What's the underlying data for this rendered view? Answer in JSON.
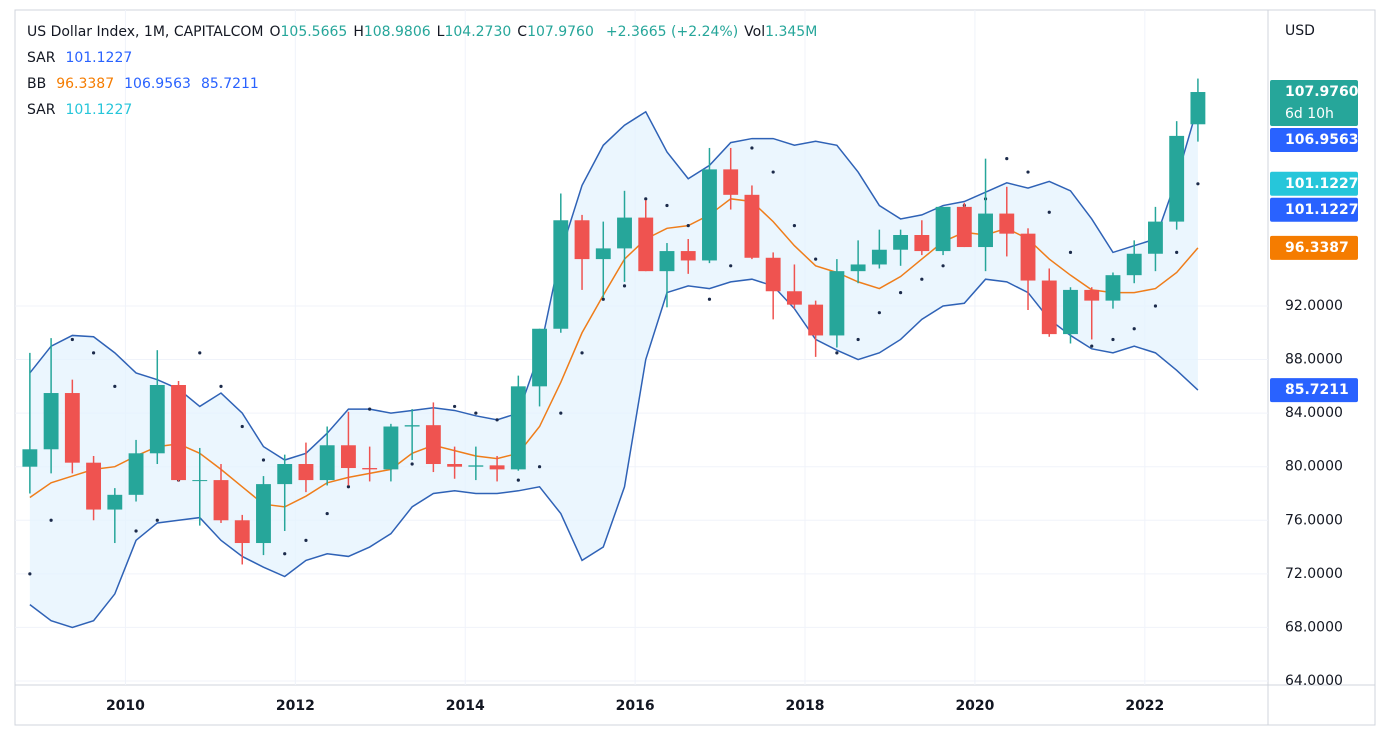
{
  "header": {
    "symbol": "US Dollar Index, 1M, CAPITALCOM",
    "fields": [
      {
        "key": "O",
        "value": "105.5665"
      },
      {
        "key": "H",
        "value": "108.9806"
      },
      {
        "key": "L",
        "value": "104.2730"
      },
      {
        "key": "C",
        "value": "107.9760"
      }
    ],
    "change": "+2.3665 (+2.24%)",
    "vol_key": "Vol",
    "vol": "1.345M",
    "indicators": [
      {
        "name": "SAR",
        "values": [
          "101.1227"
        ]
      },
      {
        "name": "BB",
        "values": [
          "96.3387",
          "106.9563",
          "85.7211"
        ]
      },
      {
        "name": "SAR",
        "values": [
          "101.1227"
        ]
      }
    ]
  },
  "chart_data": {
    "type": "candlestick",
    "currency": "USD",
    "x": [
      2008.75,
      2009,
      2009.25,
      2009.5,
      2009.75,
      2010,
      2010.25,
      2010.5,
      2010.75,
      2011,
      2011.25,
      2011.5,
      2011.75,
      2012,
      2012.25,
      2012.5,
      2012.75,
      2013,
      2013.25,
      2013.5,
      2013.75,
      2014,
      2014.25,
      2014.5,
      2014.75,
      2015,
      2015.25,
      2015.5,
      2015.75,
      2016,
      2016.25,
      2016.5,
      2016.75,
      2017,
      2017.25,
      2017.5,
      2017.75,
      2018,
      2018.25,
      2018.5,
      2018.75,
      2019,
      2019.25,
      2019.5,
      2019.75,
      2020,
      2020.25,
      2020.5,
      2020.75,
      2021,
      2021.25,
      2021.5,
      2021.75,
      2022,
      2022.25,
      2022.5
    ],
    "open": [
      80,
      81.3,
      85.5,
      80.3,
      76.8,
      77.9,
      81,
      86.1,
      79,
      79,
      76,
      74.3,
      78.7,
      80.2,
      79,
      81.6,
      79.9,
      79.8,
      83,
      83.1,
      80.2,
      80,
      80.1,
      79.8,
      86,
      90.3,
      98.4,
      95.5,
      96.3,
      98.6,
      94.6,
      96.1,
      95.4,
      102.2,
      100.3,
      95.6,
      93.1,
      92.1,
      89.8,
      94.6,
      95.1,
      96.2,
      97.3,
      96.1,
      99.4,
      96.4,
      98.9,
      97.4,
      93.9,
      89.9,
      93.2,
      92.4,
      94.3,
      95.9,
      98.3,
      105.5665
    ],
    "high": [
      88.5,
      89.6,
      86.5,
      80.8,
      78.4,
      82,
      88.7,
      86.4,
      81.4,
      80.2,
      76.4,
      79.3,
      80.9,
      81.8,
      83,
      84.1,
      81.5,
      83.2,
      84.3,
      84.8,
      81.5,
      81.5,
      80.8,
      86.8,
      90.3,
      100.4,
      98.8,
      98.3,
      100.6,
      99.9,
      96.7,
      97,
      103.8,
      103.8,
      101,
      96,
      95.1,
      92.4,
      95.5,
      96.9,
      97.7,
      97.7,
      98.4,
      99.4,
      99.7,
      103,
      100.9,
      97.8,
      94.8,
      93.4,
      93.4,
      94.5,
      96.9,
      99.4,
      105.8,
      108.9806
    ],
    "low": [
      78,
      79.5,
      79.5,
      76,
      74.3,
      77.4,
      80.2,
      78.9,
      75.6,
      75.8,
      72.7,
      73.4,
      75.2,
      78.1,
      78.6,
      78.6,
      78.9,
      78.9,
      80.5,
      79.6,
      79.1,
      79,
      78.9,
      79.7,
      84.5,
      90,
      93.2,
      92.6,
      93.8,
      94.6,
      91.9,
      94.4,
      95.2,
      99.2,
      95.5,
      91,
      91.8,
      88.2,
      88.9,
      93.7,
      94.8,
      95,
      95.8,
      95.8,
      96.4,
      94.6,
      95.7,
      91.7,
      89.7,
      89.2,
      89.5,
      91.8,
      93.7,
      94.6,
      97.7,
      104.273
    ],
    "close": [
      81.3,
      85.5,
      80.3,
      76.8,
      77.9,
      81,
      86.1,
      79,
      79,
      76,
      74.3,
      78.7,
      80.2,
      79,
      81.6,
      79.9,
      79.8,
      83,
      83.1,
      80.2,
      80,
      80.1,
      79.8,
      86,
      90.3,
      98.4,
      95.5,
      96.3,
      98.6,
      94.6,
      96.1,
      95.4,
      102.2,
      100.3,
      95.6,
      93.1,
      92.1,
      89.8,
      94.6,
      95.1,
      96.2,
      97.3,
      96.1,
      99.4,
      96.4,
      98.9,
      97.4,
      93.9,
      89.9,
      93.2,
      92.4,
      94.3,
      95.9,
      98.3,
      104.7,
      107.976
    ],
    "series": [
      {
        "name": "BB upper",
        "color": "#2f62b6",
        "values": [
          87,
          89,
          89.8,
          89.7,
          88.5,
          87,
          86.5,
          85.8,
          84.5,
          85.5,
          84,
          81.5,
          80.5,
          81,
          82.5,
          84.3,
          84.3,
          84,
          84.2,
          84.4,
          84.2,
          83.8,
          83.5,
          84,
          88.5,
          96,
          101,
          104,
          105.5,
          106.5,
          103.5,
          101.5,
          102.5,
          104.2,
          104.5,
          104.5,
          104,
          104.3,
          104,
          102,
          99.5,
          98.5,
          98.8,
          99.5,
          99.8,
          100.5,
          101.2,
          100.8,
          101.3,
          100.6,
          98.5,
          96,
          96.5,
          97,
          101.5,
          106.9563
        ]
      },
      {
        "name": "BB basis",
        "color": "#ef7d1a",
        "values": [
          77.7,
          78.8,
          79.3,
          79.8,
          80,
          80.8,
          81.5,
          81.7,
          81,
          79.8,
          78.5,
          77.2,
          77,
          77.8,
          78.8,
          79.2,
          79.5,
          79.8,
          81,
          81.6,
          81.2,
          80.8,
          80.6,
          81,
          83,
          86.3,
          90,
          92.8,
          95.5,
          97,
          97.8,
          98,
          98.8,
          100,
          99.8,
          98.3,
          96.5,
          95,
          94.5,
          93.8,
          93.3,
          94.2,
          95.5,
          96.8,
          97.5,
          97.3,
          97.8,
          97,
          95.5,
          94.3,
          93.2,
          93,
          93,
          93.3,
          94.5,
          96.3387
        ]
      },
      {
        "name": "BB lower",
        "color": "#2f62b6",
        "values": [
          69.7,
          68.5,
          68,
          68.5,
          70.5,
          74.5,
          75.8,
          76,
          76.2,
          74.5,
          73.3,
          72.5,
          71.8,
          73,
          73.5,
          73.3,
          74,
          75,
          77,
          78,
          78.2,
          78,
          78,
          78.2,
          78.5,
          76.5,
          73,
          74,
          78.5,
          88,
          93,
          93.5,
          93.3,
          93.8,
          94,
          93.5,
          91.8,
          89.5,
          88.7,
          88,
          88.5,
          89.5,
          91,
          92,
          92.2,
          94,
          93.8,
          93,
          91,
          89.8,
          88.8,
          88.5,
          89,
          88.5,
          87.2,
          85.7211
        ]
      },
      {
        "name": "SAR",
        "color": "#1b2a4a",
        "values": [
          72,
          76,
          89.5,
          88.5,
          86,
          75.2,
          76,
          79,
          88.5,
          86,
          83,
          80.5,
          73.5,
          74.5,
          76.5,
          78.5,
          84.3,
          82,
          80.2,
          81.5,
          84.5,
          84,
          83.5,
          79,
          80,
          84,
          88.5,
          92.5,
          93.5,
          100,
          99.5,
          98,
          92.5,
          95,
          103.8,
          102,
          98,
          95.5,
          88.5,
          89.5,
          91.5,
          93,
          94,
          95,
          99.5,
          100,
          103,
          102,
          99,
          96,
          89,
          89.5,
          90.3,
          92,
          96,
          101.1227
        ]
      }
    ],
    "xlim": [
      2008.7,
      2023.45
    ],
    "xticks": [
      2010,
      2012,
      2014,
      2016,
      2018,
      2020,
      2022
    ],
    "ylim": [
      63.7,
      114.1
    ],
    "yticks": [
      {
        "value": 64,
        "label": "64.0000"
      },
      {
        "value": 68,
        "label": "68.0000"
      },
      {
        "value": 72,
        "label": "72.0000"
      },
      {
        "value": 76,
        "label": "76.0000"
      },
      {
        "value": 80,
        "label": "80.0000"
      },
      {
        "value": 84,
        "label": "84.0000"
      },
      {
        "value": 88,
        "label": "88.0000"
      },
      {
        "value": 92,
        "label": "92.0000"
      }
    ],
    "up_color": "#26a69a",
    "down_color": "#ef5350",
    "band_fill": "#e3f2fd",
    "price_tags": [
      {
        "value": 107.976,
        "label": "107.9760",
        "sub": "6d 10h",
        "color": "#26a69a"
      },
      {
        "value": 106.9563,
        "label": "106.9563",
        "color": "#2962ff"
      },
      {
        "value": 101.1227,
        "label": "101.1227",
        "color": "#26c6da"
      },
      {
        "value": 101.1227,
        "label": "101.1227",
        "color": "#2962ff"
      },
      {
        "value": 96.3387,
        "label": "96.3387",
        "color": "#f57c00"
      },
      {
        "value": 85.7211,
        "label": "85.7211",
        "color": "#2962ff"
      }
    ]
  }
}
